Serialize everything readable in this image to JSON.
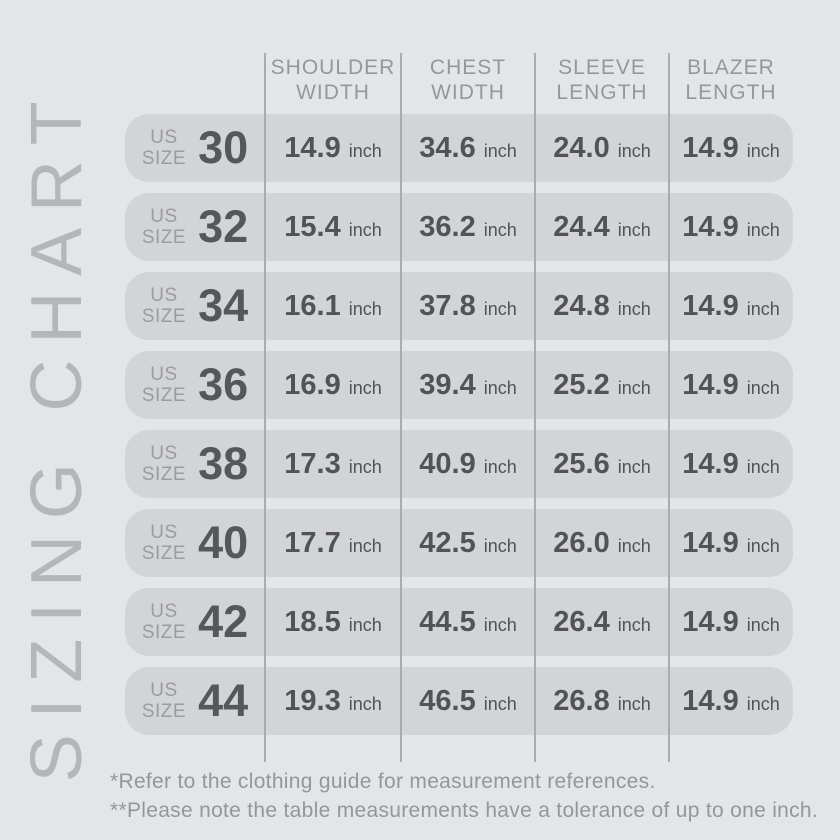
{
  "title": "SIZING CHART",
  "table": {
    "size_label_top": "US",
    "size_label_bottom": "SIZE",
    "unit": "inch",
    "columns": [
      {
        "line1": "SHOULDER",
        "line2": "WIDTH"
      },
      {
        "line1": "CHEST",
        "line2": "WIDTH"
      },
      {
        "line1": "SLEEVE",
        "line2": "LENGTH"
      },
      {
        "line1": "BLAZER",
        "line2": "LENGTH"
      }
    ],
    "rows": [
      {
        "size": "30",
        "values": [
          "14.9",
          "34.6",
          "24.0",
          "14.9"
        ]
      },
      {
        "size": "32",
        "values": [
          "15.4",
          "36.2",
          "24.4",
          "14.9"
        ]
      },
      {
        "size": "34",
        "values": [
          "16.1",
          "37.8",
          "24.8",
          "14.9"
        ]
      },
      {
        "size": "36",
        "values": [
          "16.9",
          "39.4",
          "25.2",
          "14.9"
        ]
      },
      {
        "size": "38",
        "values": [
          "17.3",
          "40.9",
          "25.6",
          "14.9"
        ]
      },
      {
        "size": "40",
        "values": [
          "17.7",
          "42.5",
          "26.0",
          "14.9"
        ]
      },
      {
        "size": "42",
        "values": [
          "18.5",
          "44.5",
          "26.4",
          "14.9"
        ]
      },
      {
        "size": "44",
        "values": [
          "19.3",
          "46.5",
          "26.8",
          "14.9"
        ]
      }
    ]
  },
  "footnotes": [
    "*Refer to the clothing guide for measurement references.",
    "**Please note the table measurements have a tolerance of up to one inch."
  ],
  "colors": {
    "background": "#e4e5e7",
    "row_pill": "#d3d4d6",
    "divider": "#a9abad",
    "title_text": "#b4b6b8",
    "header_text": "#95979a",
    "value_text": "#515356",
    "muted_label": "#9a9ca0"
  },
  "chart_data": {
    "type": "table",
    "title": "SIZING CHART",
    "columns": [
      "US SIZE",
      "SHOULDER WIDTH (inch)",
      "CHEST WIDTH (inch)",
      "SLEEVE LENGTH (inch)",
      "BLAZER LENGTH (inch)"
    ],
    "rows": [
      [
        30,
        14.9,
        34.6,
        24.0,
        14.9
      ],
      [
        32,
        15.4,
        36.2,
        24.4,
        14.9
      ],
      [
        34,
        16.1,
        37.8,
        24.8,
        14.9
      ],
      [
        36,
        16.9,
        39.4,
        25.2,
        14.9
      ],
      [
        38,
        17.3,
        40.9,
        25.6,
        14.9
      ],
      [
        40,
        17.7,
        42.5,
        26.0,
        14.9
      ],
      [
        42,
        18.5,
        44.5,
        26.4,
        14.9
      ],
      [
        44,
        19.3,
        46.5,
        26.8,
        14.9
      ]
    ],
    "notes": [
      "*Refer to the clothing guide for measurement references.",
      "**Please note the table measurements have a tolerance of up to one inch."
    ]
  }
}
